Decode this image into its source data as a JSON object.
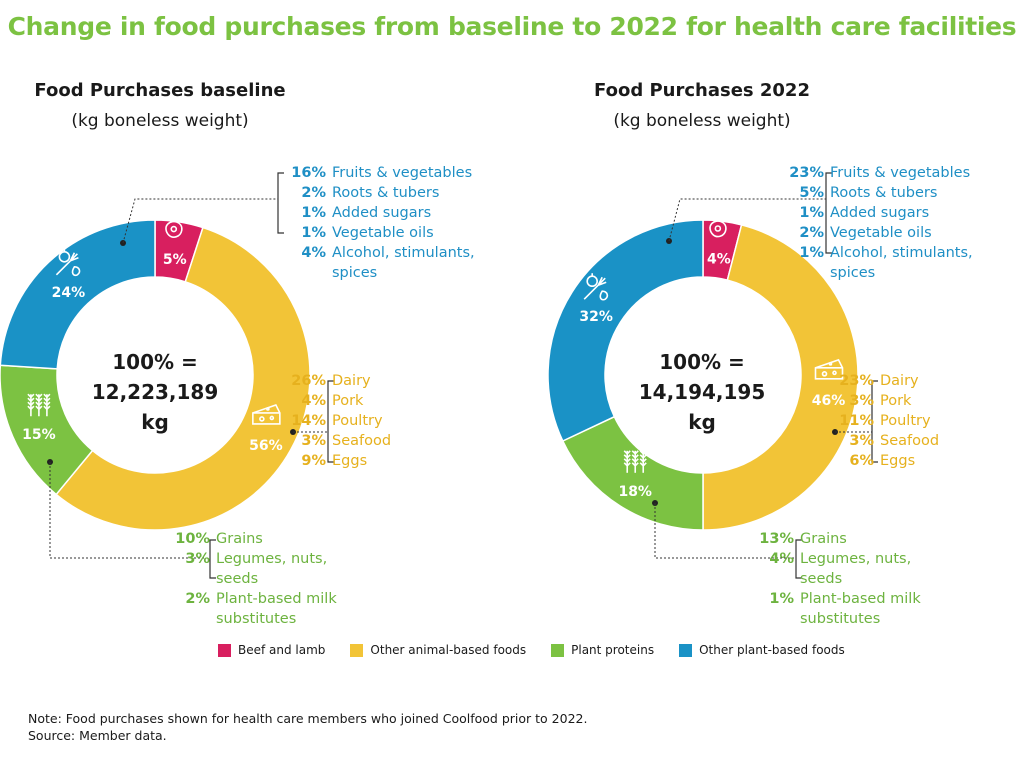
{
  "title": "Change in food purchases from baseline to 2022 for health care facilities",
  "legend": [
    {
      "label": "Beef and lamb",
      "color": "#d81f5f"
    },
    {
      "label": "Other animal-based foods",
      "color": "#f2c437"
    },
    {
      "label": "Plant proteins",
      "color": "#7cc242"
    },
    {
      "label": "Other plant-based foods",
      "color": "#1a92c6"
    }
  ],
  "chart_data": [
    {
      "type": "pie",
      "title": "Food Purchases baseline",
      "subtitle": "(kg boneless weight)",
      "center_label": [
        "100% =",
        "12,223,189 kg"
      ],
      "slices": [
        {
          "category": "Beef and lamb",
          "value": 5,
          "label": "5%",
          "icon": "steak-icon"
        },
        {
          "category": "Other animal-based foods",
          "value": 56,
          "label": "56%",
          "icon": "cheese-icon"
        },
        {
          "category": "Plant proteins",
          "value": 15,
          "label": "15%",
          "icon": "grains-icon"
        },
        {
          "category": "Other plant-based foods",
          "value": 24,
          "label": "24%",
          "icon": "vegetables-icon"
        }
      ],
      "breakdowns": {
        "other_plant": [
          {
            "pct": "16%",
            "label": "Fruits & vegetables"
          },
          {
            "pct": "2%",
            "label": "Roots & tubers"
          },
          {
            "pct": "1%",
            "label": "Added sugars"
          },
          {
            "pct": "1%",
            "label": "Vegetable oils"
          },
          {
            "pct": "4%",
            "label": "Alcohol, stimulants, spices"
          }
        ],
        "other_animal": [
          {
            "pct": "26%",
            "label": "Dairy"
          },
          {
            "pct": "4%",
            "label": "Pork"
          },
          {
            "pct": "14%",
            "label": "Poultry"
          },
          {
            "pct": "3%",
            "label": "Seafood"
          },
          {
            "pct": "9%",
            "label": "Eggs"
          }
        ],
        "plant_proteins": [
          {
            "pct": "10%",
            "label": "Grains"
          },
          {
            "pct": "3%",
            "label": "Legumes, nuts, seeds"
          },
          {
            "pct": "2%",
            "label": "Plant-based milk substitutes"
          }
        ]
      }
    },
    {
      "type": "pie",
      "title": "Food Purchases 2022",
      "subtitle": "(kg boneless weight)",
      "center_label": [
        "100% =",
        "14,194,195 kg"
      ],
      "slices": [
        {
          "category": "Beef and lamb",
          "value": 4,
          "label": "4%",
          "icon": "steak-icon"
        },
        {
          "category": "Other animal-based foods",
          "value": 46,
          "label": "46%",
          "icon": "cheese-icon"
        },
        {
          "category": "Plant proteins",
          "value": 18,
          "label": "18%",
          "icon": "grains-icon"
        },
        {
          "category": "Other plant-based foods",
          "value": 32,
          "label": "32%",
          "icon": "vegetables-icon"
        }
      ],
      "breakdowns": {
        "other_plant": [
          {
            "pct": "23%",
            "label": "Fruits & vegetables"
          },
          {
            "pct": "5%",
            "label": "Roots & tubers"
          },
          {
            "pct": "1%",
            "label": "Added sugars"
          },
          {
            "pct": "2%",
            "label": "Vegetable oils"
          },
          {
            "pct": "1%",
            "label": "Alcohol, stimulants, spices"
          }
        ],
        "other_animal": [
          {
            "pct": "23%",
            "label": "Dairy"
          },
          {
            "pct": "3%",
            "label": "Pork"
          },
          {
            "pct": "11%",
            "label": "Poultry"
          },
          {
            "pct": "3%",
            "label": "Seafood"
          },
          {
            "pct": "6%",
            "label": "Eggs"
          }
        ],
        "plant_proteins": [
          {
            "pct": "13%",
            "label": "Grains"
          },
          {
            "pct": "4%",
            "label": "Legumes, nuts, seeds"
          },
          {
            "pct": "1%",
            "label": "Plant-based milk substitutes"
          }
        ]
      }
    }
  ],
  "note": "Note: Food purchases shown for health care members who joined Coolfood prior to 2022.",
  "source": "Source: Member data."
}
